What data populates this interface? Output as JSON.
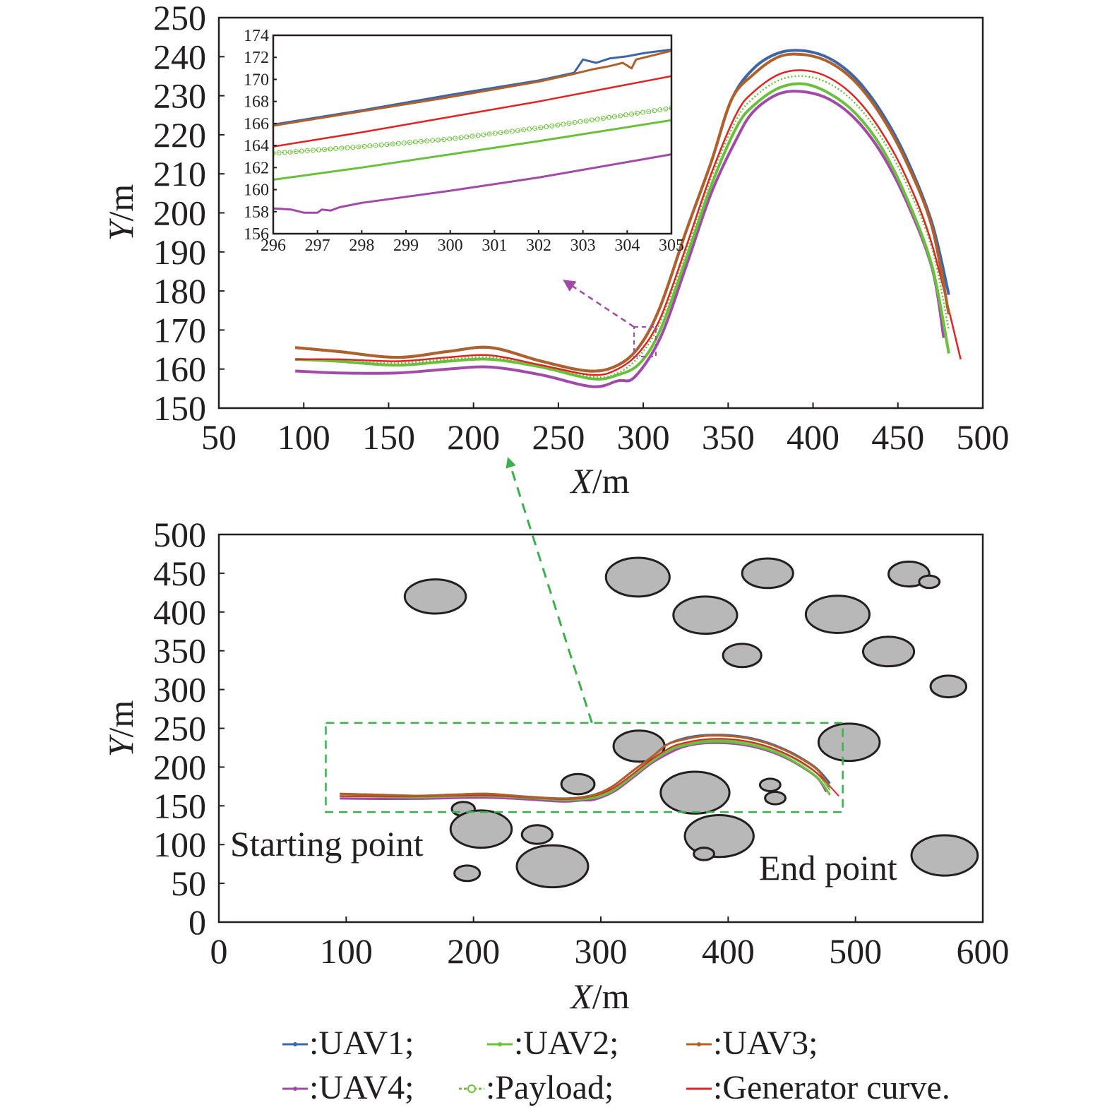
{
  "colors": {
    "UAV1": "#3d66a8",
    "UAV2": "#6abf3c",
    "UAV3": "#b0602a",
    "UAV4": "#a24aa8",
    "Payload": "#6abf3c",
    "Generator curve": "#e02424",
    "obstacle": "#b8b8b8",
    "zoom_box": "#3cb04a",
    "inset_arrow": "#a24aa8"
  },
  "chart_data": [
    {
      "type": "line",
      "panel": "top",
      "xlabel_italic": "X",
      "xlabel_unit": "/m",
      "ylabel_italic": "Y",
      "ylabel_unit": "/m",
      "xlim": [
        50,
        500
      ],
      "ylim": [
        150,
        250
      ],
      "xticks": [
        50,
        100,
        150,
        200,
        250,
        300,
        350,
        400,
        450,
        500
      ],
      "yticks": [
        150,
        160,
        170,
        180,
        190,
        200,
        210,
        220,
        230,
        240,
        250
      ],
      "grid": false,
      "series": [
        {
          "name": "UAV1",
          "x": [
            95,
            120,
            155,
            185,
            210,
            240,
            268,
            285,
            298,
            310,
            325,
            340,
            352,
            365,
            380,
            395,
            410,
            425,
            440,
            455,
            470,
            480
          ],
          "y": [
            165.5,
            164.5,
            163.0,
            164.5,
            165.5,
            162.0,
            159.5,
            161.0,
            166.0,
            176.0,
            195.0,
            213.0,
            229.0,
            237.0,
            241.0,
            241.5,
            239.5,
            234.5,
            226.0,
            214.0,
            197.5,
            179.0
          ]
        },
        {
          "name": "UAV2",
          "x": [
            95,
            120,
            155,
            185,
            210,
            240,
            270,
            285,
            298,
            310,
            325,
            340,
            355,
            365,
            380,
            395,
            410,
            425,
            440,
            455,
            470,
            480
          ],
          "y": [
            162.5,
            162.0,
            161.0,
            162.0,
            162.5,
            160.5,
            157.5,
            158.5,
            161.5,
            170.0,
            188.0,
            207.0,
            222.0,
            227.5,
            232.0,
            233.0,
            230.5,
            225.5,
            217.0,
            204.0,
            186.5,
            164.0
          ]
        },
        {
          "name": "UAV3",
          "x": [
            95,
            120,
            155,
            185,
            210,
            240,
            268,
            285,
            298,
            310,
            325,
            340,
            352,
            365,
            380,
            395,
            410,
            425,
            440,
            455,
            470,
            480
          ],
          "y": [
            165.5,
            164.5,
            163.0,
            164.5,
            165.5,
            162.0,
            159.5,
            161.0,
            166.0,
            176.0,
            195.0,
            213.0,
            229.0,
            235.5,
            240.0,
            240.5,
            238.5,
            233.5,
            225.0,
            213.0,
            196.5,
            174.0
          ]
        },
        {
          "name": "UAV4",
          "x": [
            95,
            120,
            155,
            185,
            210,
            240,
            270,
            285,
            295,
            310,
            325,
            340,
            355,
            365,
            380,
            395,
            410,
            425,
            440,
            455,
            470,
            477
          ],
          "y": [
            159.5,
            159.0,
            159.0,
            160.0,
            160.5,
            158.5,
            155.5,
            157.0,
            158.0,
            168.0,
            186.0,
            205.0,
            219.0,
            226.0,
            230.5,
            231.0,
            229.0,
            224.0,
            215.5,
            203.0,
            186.0,
            168.0
          ]
        },
        {
          "name": "Payload",
          "x": [
            95,
            120,
            155,
            185,
            210,
            240,
            270,
            285,
            298,
            310,
            325,
            340,
            355,
            365,
            380,
            395,
            410,
            425,
            440,
            455,
            470,
            480
          ],
          "y": [
            162.5,
            162.0,
            161.5,
            162.5,
            163.0,
            161.0,
            158.0,
            159.0,
            163.5,
            172.0,
            190.0,
            209.0,
            224.0,
            229.5,
            234.0,
            235.0,
            233.0,
            228.0,
            219.5,
            207.5,
            191.0,
            170.0
          ]
        },
        {
          "name": "Generator curve",
          "x": [
            95,
            120,
            155,
            185,
            210,
            240,
            270,
            285,
            298,
            310,
            325,
            340,
            355,
            365,
            380,
            395,
            410,
            425,
            440,
            455,
            470,
            487
          ],
          "y": [
            162.5,
            162.5,
            162.0,
            163.0,
            163.5,
            161.0,
            158.5,
            160.0,
            164.5,
            173.0,
            191.0,
            210.0,
            225.5,
            231.0,
            235.5,
            236.5,
            234.5,
            229.5,
            221.0,
            209.0,
            192.0,
            162.5
          ]
        }
      ]
    },
    {
      "type": "line",
      "panel": "inset",
      "xlim": [
        296,
        305
      ],
      "ylim": [
        156,
        174
      ],
      "xticks": [
        296,
        297,
        298,
        299,
        300,
        301,
        302,
        303,
        304,
        305
      ],
      "yticks": [
        156,
        158,
        160,
        162,
        164,
        166,
        168,
        170,
        172,
        174
      ],
      "series": [
        {
          "name": "UAV1",
          "x": [
            296,
            298,
            300,
            302,
            302.8,
            303.0,
            303.3,
            303.6,
            304.0,
            304.4,
            305
          ],
          "y": [
            165.9,
            167.2,
            168.6,
            169.9,
            170.6,
            171.8,
            171.5,
            171.9,
            172.1,
            172.4,
            172.7
          ]
        },
        {
          "name": "UAV3",
          "x": [
            296,
            298,
            300,
            302,
            302.8,
            303.2,
            303.6,
            303.9,
            304.1,
            304.2,
            305
          ],
          "y": [
            165.8,
            167.1,
            168.4,
            169.8,
            170.5,
            170.9,
            171.2,
            171.5,
            171.0,
            171.8,
            172.6
          ]
        },
        {
          "name": "Generator curve",
          "x": [
            296,
            298,
            300,
            302,
            305
          ],
          "y": [
            163.9,
            165.2,
            166.6,
            168.0,
            170.3
          ]
        },
        {
          "name": "Payload",
          "x": [
            296,
            298,
            300,
            302,
            305
          ],
          "y": [
            163.3,
            163.9,
            164.6,
            165.6,
            167.4
          ]
        },
        {
          "name": "UAV2",
          "x": [
            296,
            298,
            300,
            302,
            305
          ],
          "y": [
            160.9,
            162.0,
            163.2,
            164.4,
            166.3
          ]
        },
        {
          "name": "UAV4",
          "x": [
            296,
            296.4,
            296.7,
            297.0,
            297.1,
            297.3,
            297.5,
            298,
            300,
            302,
            305
          ],
          "y": [
            158.3,
            158.2,
            157.9,
            157.9,
            158.2,
            158.1,
            158.4,
            158.8,
            159.9,
            161.1,
            163.2
          ]
        }
      ]
    },
    {
      "type": "scatter",
      "panel": "bottom",
      "xlabel_italic": "X",
      "xlabel_unit": "/m",
      "ylabel_italic": "Y",
      "ylabel_unit": "/m",
      "xlim": [
        0,
        600
      ],
      "ylim": [
        0,
        500
      ],
      "xticks": [
        0,
        100,
        200,
        300,
        400,
        500,
        600
      ],
      "yticks": [
        0,
        50,
        100,
        150,
        200,
        250,
        300,
        350,
        400,
        450,
        500
      ],
      "grid": false,
      "obstacles": [
        {
          "cx": 170,
          "cy": 420,
          "rx": 24,
          "ry": 22
        },
        {
          "cx": 329,
          "cy": 445,
          "rx": 25,
          "ry": 25
        },
        {
          "cx": 382,
          "cy": 396,
          "rx": 25,
          "ry": 24
        },
        {
          "cx": 431,
          "cy": 450,
          "rx": 20,
          "ry": 19
        },
        {
          "cx": 486,
          "cy": 397,
          "rx": 25,
          "ry": 24
        },
        {
          "cx": 411,
          "cy": 344,
          "rx": 15,
          "ry": 15
        },
        {
          "cx": 526,
          "cy": 349,
          "rx": 20,
          "ry": 19
        },
        {
          "cx": 542,
          "cy": 449,
          "rx": 16,
          "ry": 16
        },
        {
          "cx": 558,
          "cy": 439,
          "rx": 8,
          "ry": 8
        },
        {
          "cx": 573,
          "cy": 304,
          "rx": 14,
          "ry": 14
        },
        {
          "cx": 330,
          "cy": 227,
          "rx": 20,
          "ry": 20
        },
        {
          "cx": 495,
          "cy": 232,
          "rx": 24,
          "ry": 24
        },
        {
          "cx": 282,
          "cy": 178,
          "rx": 13,
          "ry": 13
        },
        {
          "cx": 374,
          "cy": 167,
          "rx": 27,
          "ry": 27
        },
        {
          "cx": 433,
          "cy": 177,
          "rx": 8,
          "ry": 8
        },
        {
          "cx": 437,
          "cy": 160,
          "rx": 8,
          "ry": 8
        },
        {
          "cx": 192,
          "cy": 146,
          "rx": 9,
          "ry": 9
        },
        {
          "cx": 206,
          "cy": 120,
          "rx": 24,
          "ry": 24
        },
        {
          "cx": 250,
          "cy": 113,
          "rx": 12,
          "ry": 12
        },
        {
          "cx": 262,
          "cy": 72,
          "rx": 28,
          "ry": 27
        },
        {
          "cx": 195,
          "cy": 63,
          "rx": 10,
          "ry": 10
        },
        {
          "cx": 393,
          "cy": 111,
          "rx": 27,
          "ry": 27
        },
        {
          "cx": 381,
          "cy": 88,
          "rx": 8,
          "ry": 8
        },
        {
          "cx": 570,
          "cy": 86,
          "rx": 26,
          "ry": 26
        }
      ],
      "zoom_box": {
        "x": [
          84,
          490
        ],
        "y": [
          142,
          257
        ]
      },
      "annotations": {
        "start": "Starting point",
        "end": "End point"
      }
    }
  ],
  "legend": [
    {
      "label": ":UAV1;",
      "series": "UAV1",
      "marker": "dot"
    },
    {
      "label": ":UAV2;",
      "series": "UAV2",
      "marker": "dot"
    },
    {
      "label": ":UAV3;",
      "series": "UAV3",
      "marker": "dot"
    },
    {
      "label": ":UAV4;",
      "series": "UAV4",
      "marker": "dot"
    },
    {
      "label": ":Payload;",
      "series": "Payload",
      "marker": "circle"
    },
    {
      "label": ":Generator curve.",
      "series": "Generator curve",
      "marker": "none"
    }
  ]
}
